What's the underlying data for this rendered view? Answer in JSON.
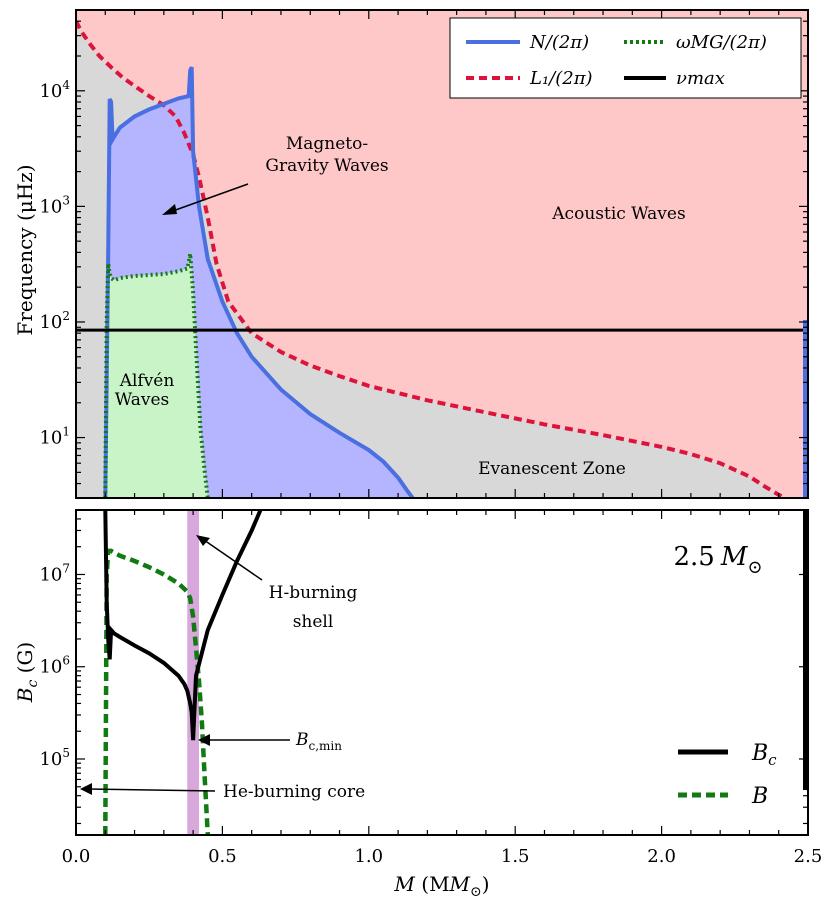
{
  "chart_data": [
    {
      "type": "area",
      "panel": "top",
      "ylabel_main": "Frequency (",
      "ylabel_unit": "μHz",
      "ylabel_close": ")",
      "yscale": "log",
      "ylim": [
        3,
        50000
      ],
      "xlim": [
        0.0,
        2.5
      ],
      "y_ticks": [
        {
          "value": 10,
          "base": "10",
          "exp": "1"
        },
        {
          "value": 100,
          "base": "10",
          "exp": "2"
        },
        {
          "value": 1000,
          "base": "10",
          "exp": "3"
        },
        {
          "value": 10000,
          "base": "10",
          "exp": "4"
        }
      ],
      "legend": [
        {
          "key": "N",
          "label": "N/(2π)",
          "color": "#4a6fe0",
          "style": "solid"
        },
        {
          "key": "L1",
          "label": "L₁/(2π)",
          "color": "#dc143c",
          "style": "dashed"
        },
        {
          "key": "wMG",
          "label": "ωMG/(2π)",
          "color": "#117a11",
          "style": "dotted"
        },
        {
          "key": "numax",
          "label": "νmax",
          "color": "#000000",
          "style": "solid"
        }
      ],
      "region_labels": {
        "magneto_line1": "Magneto-",
        "magneto_line2": "Gravity Waves",
        "acoustic": "Acoustic Waves",
        "alfven_line1": "Alfvén",
        "alfven_line2": "Waves",
        "evanescent": "Evanescent Zone"
      },
      "region_colors": {
        "acoustic": "#ffc8c8",
        "evanescent": "#d8d8d8",
        "gravity": "#b4b4ff",
        "alfven": "#c8f4c8"
      },
      "numax": 85,
      "series": [
        {
          "name": "L1/(2pi)",
          "x": [
            0.0,
            0.02,
            0.05,
            0.08,
            0.12,
            0.16,
            0.2,
            0.25,
            0.3,
            0.34,
            0.37,
            0.4,
            0.42,
            0.45,
            0.48,
            0.52,
            0.6,
            0.7,
            0.8,
            0.9,
            1.0,
            1.2,
            1.4,
            1.6,
            1.8,
            2.0,
            2.1,
            2.2,
            2.3,
            2.35,
            2.4,
            2.42
          ],
          "y": [
            40000,
            32000,
            25000,
            20000,
            16000,
            13000,
            11000,
            9000,
            7500,
            6000,
            4300,
            2800,
            1800,
            800,
            320,
            150,
            80,
            55,
            42,
            34,
            28,
            21,
            16.5,
            13,
            10.5,
            8.3,
            7.2,
            6.0,
            4.6,
            3.8,
            3.2,
            3.0
          ]
        },
        {
          "name": "N/(2pi)",
          "x": [
            0.1,
            0.11,
            0.115,
            0.12,
            0.125,
            0.13,
            0.15,
            0.2,
            0.25,
            0.3,
            0.35,
            0.385,
            0.39,
            0.395,
            0.4,
            0.42,
            0.45,
            0.5,
            0.55,
            0.6,
            0.7,
            0.8,
            0.9,
            1.0,
            1.05,
            1.1,
            1.13,
            1.15
          ],
          "y": [
            3,
            400,
            8500,
            8000,
            3800,
            4000,
            4800,
            6000,
            6900,
            7700,
            8600,
            9000,
            15000,
            16000,
            3000,
            1000,
            350,
            150,
            80,
            50,
            26,
            16,
            11,
            7.8,
            6.2,
            4.5,
            3.5,
            3.0
          ]
        },
        {
          "name": "omegaMG/(2pi)",
          "x": [
            0.1,
            0.105,
            0.11,
            0.115,
            0.12,
            0.13,
            0.15,
            0.2,
            0.25,
            0.3,
            0.35,
            0.38,
            0.385,
            0.39,
            0.4,
            0.41,
            0.425,
            0.44,
            0.45
          ],
          "y": [
            3,
            100,
            320,
            260,
            240,
            230,
            240,
            250,
            255,
            260,
            275,
            290,
            330,
            390,
            180,
            60,
            12,
            5,
            3
          ]
        }
      ]
    },
    {
      "type": "line",
      "panel": "bottom",
      "ylabel": "Bc (G)",
      "ylabel_main": "B",
      "ylabel_sub": "c",
      "ylabel_rest": " (G)",
      "yscale": "log",
      "ylim": [
        15000,
        50000000
      ],
      "xlim": [
        0.0,
        2.5
      ],
      "xlabel_main": "M",
      "xlabel_rest": " (M",
      "xlabel_sym": "⊙",
      "xlabel_close": ")",
      "x_ticks": [
        "0.0",
        "0.5",
        "1.0",
        "1.5",
        "2.0",
        "2.5"
      ],
      "y_ticks": [
        {
          "value": 100000,
          "base": "10",
          "exp": "5"
        },
        {
          "value": 1000000,
          "base": "10",
          "exp": "6"
        },
        {
          "value": 10000000,
          "base": "10",
          "exp": "7"
        }
      ],
      "mass_label": "2.5",
      "mass_symbol": "M",
      "mass_sun": "⊙",
      "annotations": {
        "h_shell_1": "H-burning",
        "h_shell_2": "shell",
        "bcmin_main": "B",
        "bcmin_sub": "c,min",
        "he_core": "He-burning core"
      },
      "shell_band": [
        0.38,
        0.42
      ],
      "shell_color": "#d8a8dc",
      "legend": [
        {
          "key": "Bc",
          "label_main": "B",
          "label_sub": "c",
          "color": "#000000",
          "style": "solid"
        },
        {
          "key": "B",
          "label_main": "B",
          "label_sub": "",
          "color": "#117a11",
          "style": "dashed"
        }
      ],
      "series": [
        {
          "name": "Bc",
          "x": [
            0.1,
            0.105,
            0.11,
            0.115,
            0.12,
            0.125,
            0.13,
            0.15,
            0.2,
            0.25,
            0.3,
            0.35,
            0.37,
            0.38,
            0.39,
            0.395,
            0.4,
            0.41,
            0.45,
            0.5,
            0.55,
            0.6,
            0.63
          ],
          "y": [
            50000000,
            5000000,
            2000000,
            1200000,
            2500000,
            2400000,
            2300000,
            2100000,
            1700000,
            1400000,
            1100000,
            800000,
            650000,
            550000,
            400000,
            320000,
            160000,
            800000,
            2500000,
            6000000,
            14000000,
            30000000,
            50000000
          ]
        },
        {
          "name": "B",
          "x": [
            0.1,
            0.105,
            0.11,
            0.12,
            0.15,
            0.2,
            0.25,
            0.3,
            0.35,
            0.38,
            0.39,
            0.4,
            0.41,
            0.42,
            0.43,
            0.44,
            0.45
          ],
          "y": [
            15000,
            10000000,
            18000000,
            18000000,
            16000000,
            14000000,
            12000000,
            10000000,
            8000000,
            6500000,
            5500000,
            3500000,
            1600000,
            700000,
            250000,
            60000,
            15000
          ]
        }
      ]
    }
  ]
}
